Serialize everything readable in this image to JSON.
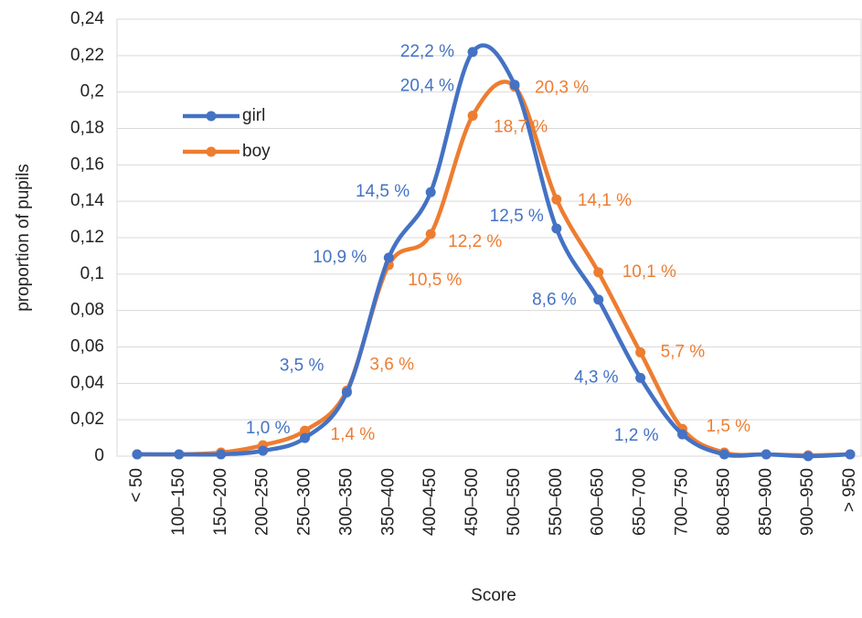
{
  "chart_data": {
    "type": "line",
    "x_label": "Score",
    "y_label": "proportion of pupils",
    "categories": [
      "< 50",
      "100–150",
      "150–200",
      "200–250",
      "250–300",
      "300–350",
      "350–400",
      "400–450",
      "450–500",
      "500–550",
      "550–600",
      "600–650",
      "650–700",
      "700–750",
      "800–850",
      "850–900",
      "900–950",
      "> 950"
    ],
    "series": [
      {
        "name": "girl",
        "color": "#4472c4",
        "values": [
          0.001,
          0.001,
          0.001,
          0.003,
          0.01,
          0.035,
          0.109,
          0.145,
          0.222,
          0.204,
          0.125,
          0.086,
          0.043,
          0.012,
          0.001,
          0.001,
          0.0,
          0.001
        ],
        "value_labels": [
          null,
          null,
          null,
          null,
          "1,0 %",
          "3,5 %",
          "10,9 %",
          "14,5 %",
          "22,2 %",
          "20,4 %",
          "12,5 %",
          "8,6 %",
          "4,3 %",
          "1,2 %",
          null,
          null,
          null,
          null
        ]
      },
      {
        "name": "boy",
        "color": "#ed7d31",
        "values": [
          0.001,
          0.001,
          0.002,
          0.006,
          0.014,
          0.036,
          0.105,
          0.122,
          0.187,
          0.203,
          0.141,
          0.101,
          0.057,
          0.015,
          0.002,
          0.001,
          0.0005,
          0.001
        ],
        "value_labels": [
          null,
          null,
          null,
          null,
          "1,4 %",
          "3,6 %",
          "10,5 %",
          "12,2 %",
          "18,7 %",
          "20,3 %",
          "14,1 %",
          "10,1 %",
          "5,7 %",
          "1,5 %",
          null,
          null,
          null,
          null
        ]
      }
    ],
    "ylim": [
      0,
      0.24
    ],
    "yticks": [
      0,
      {
        "value": 0.02,
        "label": "0,02"
      },
      {
        "value": 0.04,
        "label": "0,04"
      },
      {
        "value": 0.06,
        "label": "0,06"
      },
      {
        "value": 0.08,
        "label": "0,08"
      },
      {
        "value": 0.1,
        "label": "0,1"
      },
      {
        "value": 0.12,
        "label": "0,12"
      },
      {
        "value": 0.14,
        "label": "0,14"
      },
      {
        "value": 0.16,
        "label": "0,16"
      },
      {
        "value": 0.18,
        "label": "0,18"
      },
      {
        "value": 0.2,
        "label": "0,2"
      },
      {
        "value": 0.22,
        "label": "0,22"
      },
      {
        "value": 0.24,
        "label": "0,24"
      }
    ],
    "grid": true,
    "legend": "upper left",
    "smooth": true
  }
}
